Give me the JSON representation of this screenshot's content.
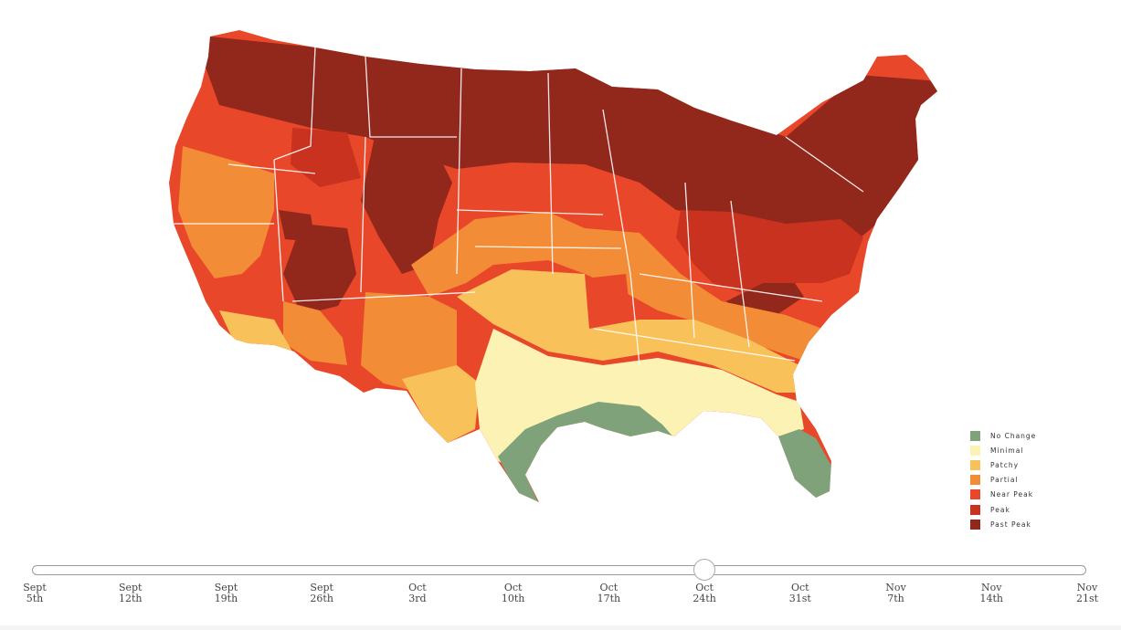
{
  "colors": {
    "no_change": "#7fa27a",
    "minimal": "#fbf2b3",
    "patchy": "#f9c15a",
    "partial": "#f28c36",
    "near_peak": "#e9472a",
    "peak": "#c8321e",
    "past_peak": "#92271b"
  },
  "legend": {
    "items": [
      {
        "label": "No Change",
        "color": "#7fa27a"
      },
      {
        "label": "Minimal",
        "color": "#fbf2b3"
      },
      {
        "label": "Patchy",
        "color": "#f9c15a"
      },
      {
        "label": "Partial",
        "color": "#f28c36"
      },
      {
        "label": "Near Peak",
        "color": "#e9472a"
      },
      {
        "label": "Peak",
        "color": "#c8321e"
      },
      {
        "label": "Past Peak",
        "color": "#92271b"
      }
    ]
  },
  "timeline": {
    "ticks": [
      {
        "line1": "Sept",
        "line2": "5th"
      },
      {
        "line1": "Sept",
        "line2": "12th"
      },
      {
        "line1": "Sept",
        "line2": "19th"
      },
      {
        "line1": "Sept",
        "line2": "26th"
      },
      {
        "line1": "Oct",
        "line2": "3rd"
      },
      {
        "line1": "Oct",
        "line2": "10th"
      },
      {
        "line1": "Oct",
        "line2": "17th"
      },
      {
        "line1": "Oct",
        "line2": "24th"
      },
      {
        "line1": "Oct",
        "line2": "31st"
      },
      {
        "line1": "Nov",
        "line2": "7th"
      },
      {
        "line1": "Nov",
        "line2": "14th"
      },
      {
        "line1": "Nov",
        "line2": "21st"
      }
    ],
    "selected_index": 7
  }
}
